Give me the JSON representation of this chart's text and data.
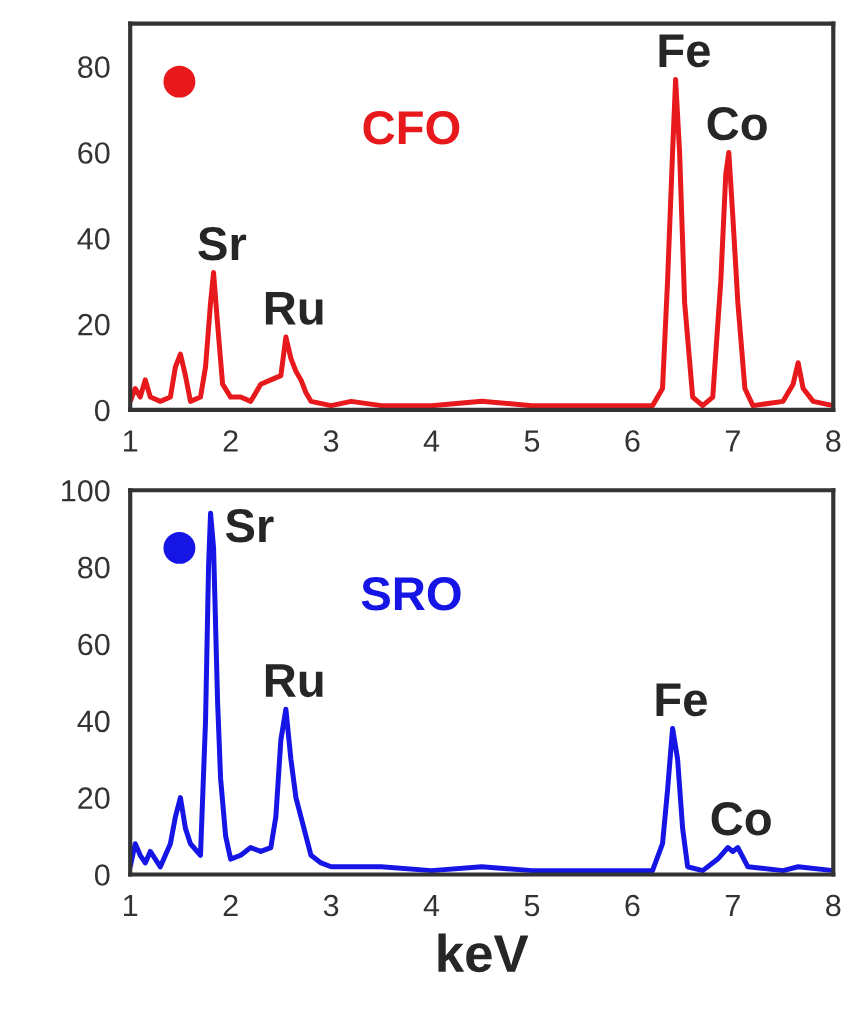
{
  "chart_data": [
    {
      "type": "line",
      "xlim": [
        1,
        8
      ],
      "xticks": [
        1,
        2,
        3,
        4,
        5,
        6,
        7,
        8
      ],
      "ylim": [
        0,
        90
      ],
      "yticks": [
        0,
        20,
        40,
        60,
        80
      ],
      "grid": false,
      "legend": false,
      "marker": "none",
      "line_style": "solid",
      "series": [
        {
          "name": "CFO",
          "color": "#e8191c",
          "x": [
            1.0,
            1.05,
            1.1,
            1.15,
            1.2,
            1.3,
            1.4,
            1.45,
            1.5,
            1.55,
            1.6,
            1.7,
            1.75,
            1.8,
            1.83,
            1.87,
            1.92,
            2.0,
            2.1,
            2.2,
            2.3,
            2.4,
            2.5,
            2.55,
            2.6,
            2.65,
            2.7,
            2.75,
            2.8,
            3.0,
            3.2,
            3.5,
            4.0,
            4.5,
            5.0,
            5.5,
            6.0,
            6.2,
            6.3,
            6.35,
            6.4,
            6.43,
            6.47,
            6.52,
            6.6,
            6.7,
            6.8,
            6.88,
            6.93,
            6.96,
            7.0,
            7.05,
            7.12,
            7.2,
            7.5,
            7.6,
            7.65,
            7.7,
            7.8,
            8.0
          ],
          "values": [
            2,
            5,
            3,
            7,
            3,
            2,
            3,
            10,
            13,
            8,
            2,
            3,
            10,
            25,
            32,
            20,
            6,
            3,
            3,
            2,
            6,
            7,
            8,
            17,
            12,
            9,
            7,
            4,
            2,
            1,
            2,
            1,
            1,
            2,
            1,
            1,
            1,
            1,
            5,
            30,
            60,
            77,
            60,
            25,
            3,
            1,
            3,
            30,
            55,
            60,
            45,
            25,
            5,
            1,
            2,
            6,
            11,
            5,
            2,
            1
          ]
        }
      ],
      "annotations": [
        {
          "text": "Sr",
          "x": 1.83,
          "y": 32
        },
        {
          "text": "Ru",
          "x": 2.55,
          "y": 17
        },
        {
          "text": "Fe",
          "x": 6.43,
          "y": 77
        },
        {
          "text": "Co",
          "x": 6.96,
          "y": 60
        }
      ]
    },
    {
      "type": "line",
      "xlabel": "keV",
      "xlim": [
        1,
        8
      ],
      "xticks": [
        1,
        2,
        3,
        4,
        5,
        6,
        7,
        8
      ],
      "ylim": [
        0,
        100
      ],
      "yticks": [
        0,
        20,
        40,
        60,
        80,
        100
      ],
      "grid": false,
      "legend": false,
      "marker": "none",
      "line_style": "solid",
      "series": [
        {
          "name": "SRO",
          "color": "#1515e6",
          "x": [
            1.0,
            1.05,
            1.1,
            1.15,
            1.2,
            1.3,
            1.4,
            1.45,
            1.5,
            1.55,
            1.6,
            1.7,
            1.75,
            1.78,
            1.8,
            1.83,
            1.87,
            1.9,
            1.95,
            2.0,
            2.1,
            2.2,
            2.3,
            2.4,
            2.45,
            2.5,
            2.55,
            2.6,
            2.65,
            2.7,
            2.75,
            2.8,
            2.9,
            3.0,
            3.5,
            4.0,
            4.5,
            5.0,
            5.5,
            6.0,
            6.2,
            6.3,
            6.35,
            6.4,
            6.45,
            6.5,
            6.55,
            6.7,
            6.85,
            6.95,
            7.0,
            7.05,
            7.15,
            7.5,
            7.65,
            8.0
          ],
          "values": [
            2,
            8,
            5,
            3,
            6,
            2,
            8,
            15,
            20,
            12,
            8,
            5,
            40,
            80,
            94,
            85,
            45,
            25,
            10,
            4,
            5,
            7,
            6,
            7,
            15,
            35,
            43,
            30,
            20,
            15,
            10,
            5,
            3,
            2,
            2,
            1,
            2,
            1,
            1,
            1,
            1,
            8,
            22,
            38,
            30,
            12,
            2,
            1,
            4,
            7,
            6,
            7,
            2,
            1,
            2,
            1
          ]
        }
      ],
      "annotations": [
        {
          "text": "Sr",
          "x": 1.8,
          "y": 94
        },
        {
          "text": "Ru",
          "x": 2.55,
          "y": 43
        },
        {
          "text": "Fe",
          "x": 6.4,
          "y": 38
        },
        {
          "text": "Co",
          "x": 7.0,
          "y": 7
        }
      ]
    }
  ]
}
